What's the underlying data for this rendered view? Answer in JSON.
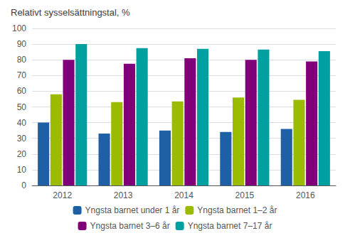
{
  "chart_data": {
    "type": "bar",
    "title": "Relativt sysselsättningstal, %",
    "categories": [
      "2012",
      "2013",
      "2014",
      "2015",
      "2016"
    ],
    "series": [
      {
        "name": "Yngsta barnet under 1 år",
        "color": "#1F5FA6",
        "values": [
          40,
          33,
          35,
          34,
          36
        ]
      },
      {
        "name": "Yngsta barnet 1–2 år",
        "color": "#9BBB00",
        "values": [
          58,
          53,
          53.5,
          56,
          54.5
        ]
      },
      {
        "name": "Yngsta barnet 3–6 år",
        "color": "#7F0078",
        "values": [
          80,
          77.5,
          81,
          80,
          79
        ]
      },
      {
        "name": "Yngsta barnet 7–17 år",
        "color": "#00A0A0",
        "values": [
          90,
          87.5,
          87,
          86.5,
          85.5
        ]
      }
    ],
    "ylim": [
      0,
      100
    ],
    "yticks": [
      0,
      10,
      20,
      30,
      40,
      50,
      60,
      70,
      80,
      90,
      100
    ],
    "grid": true,
    "legend": "bottom"
  }
}
